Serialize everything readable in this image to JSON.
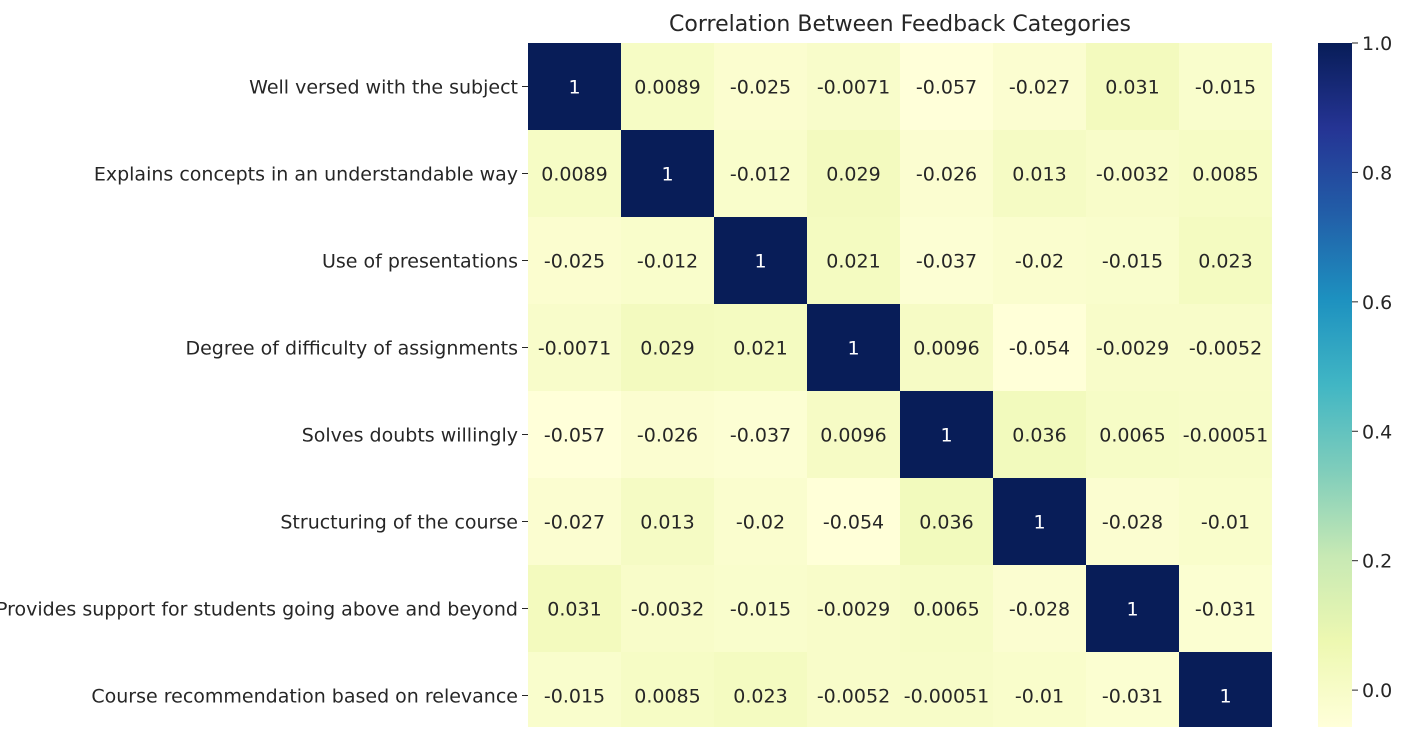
{
  "chart_data": {
    "type": "heatmap",
    "title": "Correlation Between Feedback Categories",
    "row_labels": [
      "Well versed with the subject",
      "Explains concepts in an understandable way",
      "Use of presentations",
      "Degree of difficulty of assignments",
      "Solves doubts willingly",
      "Structuring of the course",
      "Provides support for students going above and beyond",
      "Course recommendation based on relevance"
    ],
    "values": [
      [
        1,
        0.0089,
        -0.025,
        -0.0071,
        -0.057,
        -0.027,
        0.031,
        -0.015
      ],
      [
        0.0089,
        1,
        -0.012,
        0.029,
        -0.026,
        0.013,
        -0.0032,
        0.0085
      ],
      [
        -0.025,
        -0.012,
        1,
        0.021,
        -0.037,
        -0.02,
        -0.015,
        0.023
      ],
      [
        -0.0071,
        0.029,
        0.021,
        1,
        0.0096,
        -0.054,
        -0.0029,
        -0.0052
      ],
      [
        -0.057,
        -0.026,
        -0.037,
        0.0096,
        1,
        0.036,
        0.0065,
        -0.00051
      ],
      [
        -0.027,
        0.013,
        -0.02,
        -0.054,
        0.036,
        1,
        -0.028,
        -0.01
      ],
      [
        0.031,
        -0.0032,
        -0.015,
        -0.0029,
        0.0065,
        -0.028,
        1,
        -0.031
      ],
      [
        -0.015,
        0.0085,
        0.023,
        -0.0052,
        -0.00051,
        -0.01,
        -0.031,
        1
      ]
    ],
    "cell_labels": [
      [
        "1",
        "0.0089",
        "-0.025",
        "-0.0071",
        "-0.057",
        "-0.027",
        "0.031",
        "-0.015"
      ],
      [
        "0.0089",
        "1",
        "-0.012",
        "0.029",
        "-0.026",
        "0.013",
        "-0.0032",
        "0.0085"
      ],
      [
        "-0.025",
        "-0.012",
        "1",
        "0.021",
        "-0.037",
        "-0.02",
        "-0.015",
        "0.023"
      ],
      [
        "-0.0071",
        "0.029",
        "0.021",
        "1",
        "0.0096",
        "-0.054",
        "-0.0029",
        "-0.0052"
      ],
      [
        "-0.057",
        "-0.026",
        "-0.037",
        "0.0096",
        "1",
        "0.036",
        "0.0065",
        "-0.00051"
      ],
      [
        "-0.027",
        "0.013",
        "-0.02",
        "-0.054",
        "0.036",
        "1",
        "-0.028",
        "-0.01"
      ],
      [
        "0.031",
        "-0.0032",
        "-0.015",
        "-0.0029",
        "0.0065",
        "-0.028",
        "1",
        "-0.031"
      ],
      [
        "-0.015",
        "0.0085",
        "0.023",
        "-0.0052",
        "-0.00051",
        "-0.01",
        "-0.031",
        "1"
      ]
    ],
    "colormap": "YlGnBu",
    "colorbar": {
      "range": [
        -0.057,
        1.0
      ],
      "ticks": [
        "1.0",
        "0.8",
        "0.6",
        "0.4",
        "0.2",
        "0.0"
      ]
    }
  }
}
